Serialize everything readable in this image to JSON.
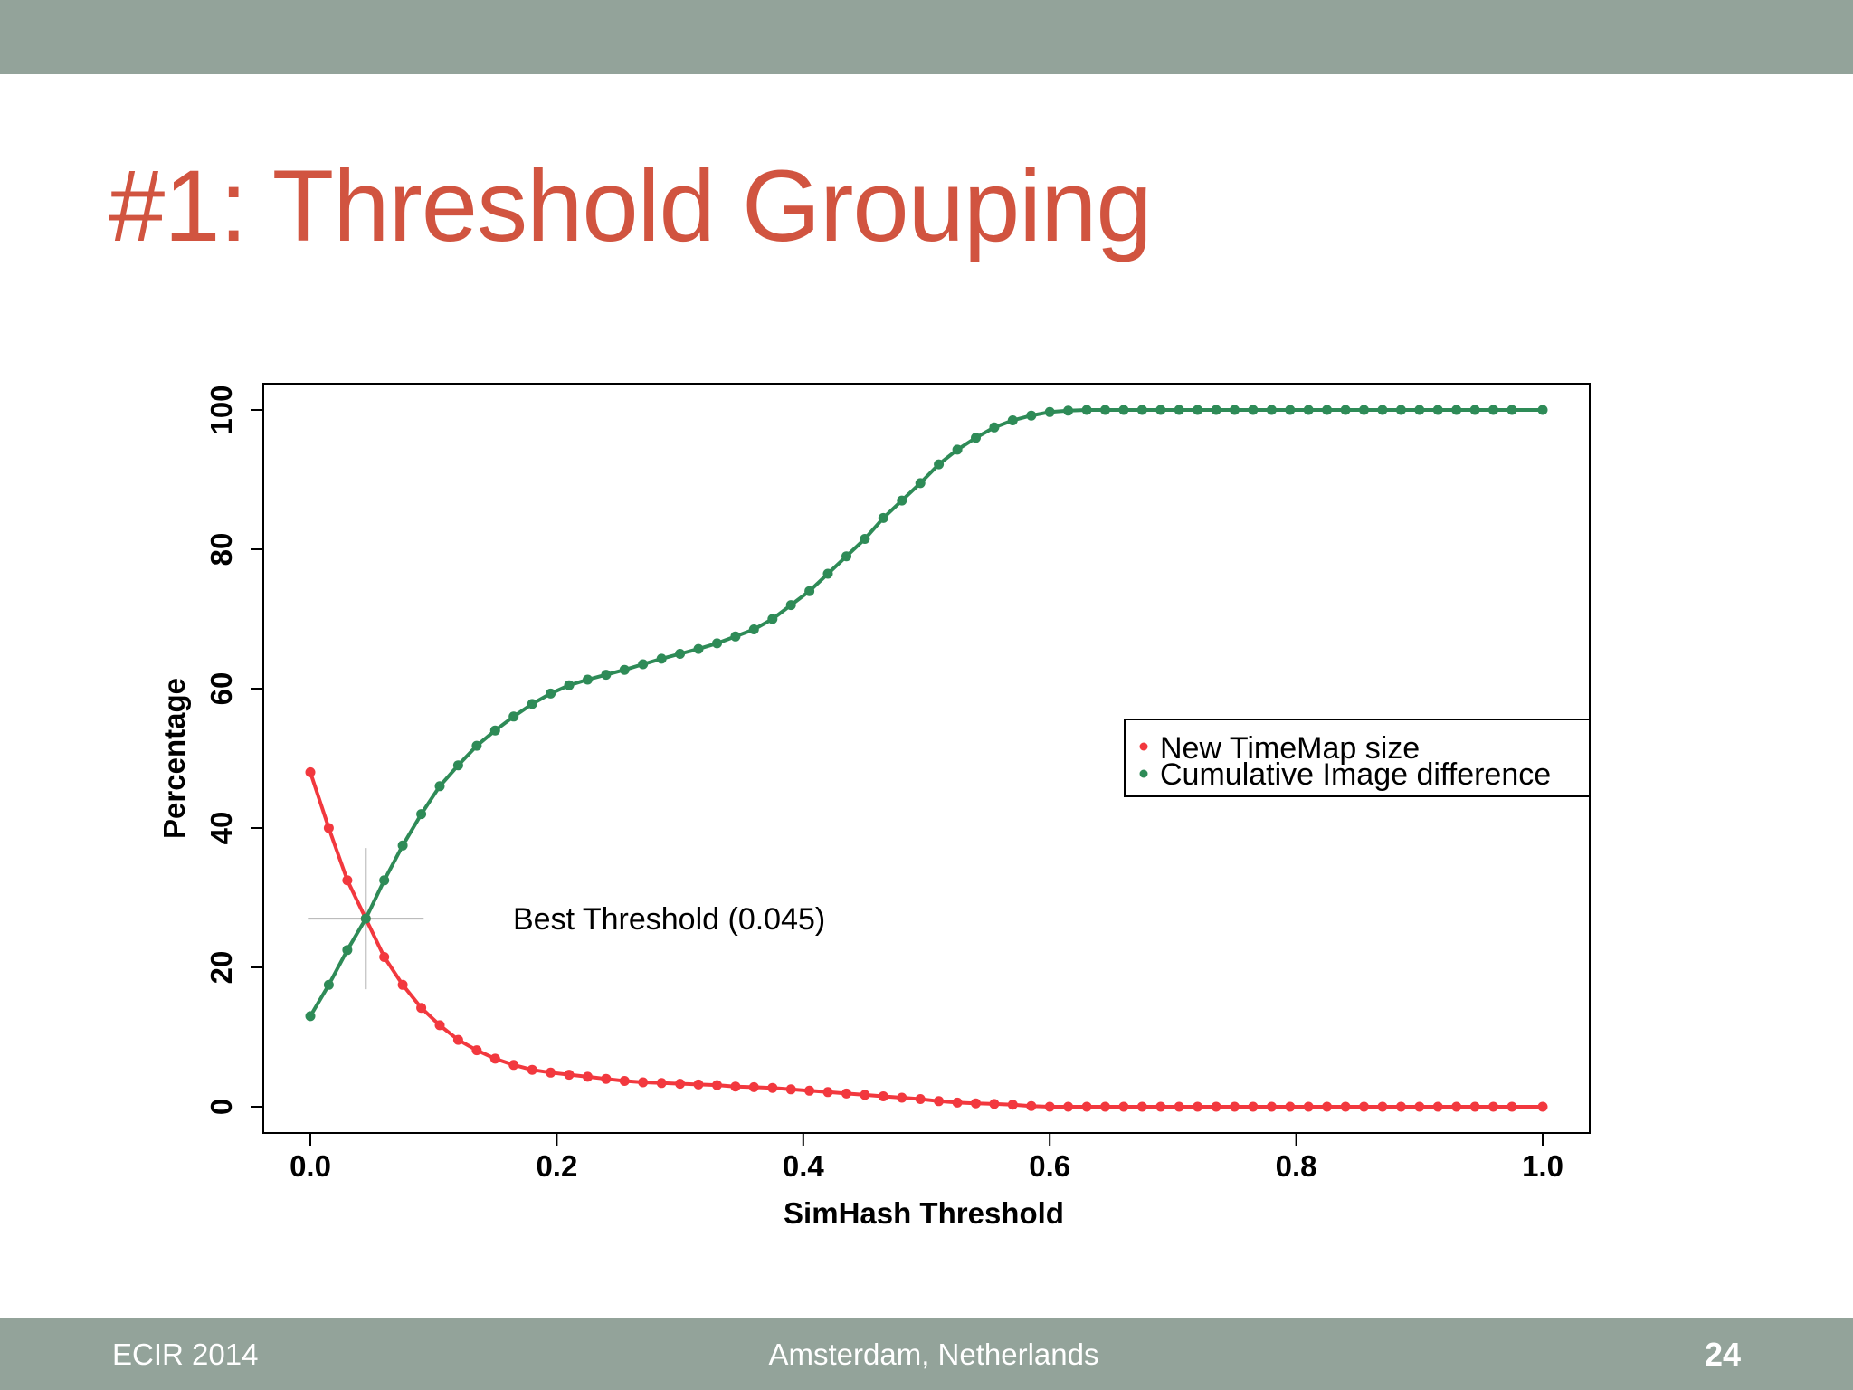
{
  "slide": {
    "title": "#1: Threshold Grouping",
    "footer_left": "ECIR 2014",
    "footer_center": "Amsterdam, Netherlands",
    "page_number": "24"
  },
  "colors": {
    "title": "#d15440",
    "bars": "#93a39a",
    "series_red": "#f2383e",
    "series_green": "#2e8b57",
    "crosshair": "#b3b3b3"
  },
  "chart_data": {
    "type": "line",
    "title": "",
    "xlabel": "SimHash Threshold",
    "ylabel": "Percentage",
    "xlim": [
      0.0,
      1.0
    ],
    "ylim": [
      0,
      100
    ],
    "x_ticks": [
      0.0,
      0.2,
      0.4,
      0.6,
      0.8,
      1.0
    ],
    "x_tick_labels": [
      "0.0",
      "0.2",
      "0.4",
      "0.6",
      "0.8",
      "1.0"
    ],
    "y_ticks": [
      0,
      20,
      40,
      60,
      80,
      100
    ],
    "y_tick_labels": [
      "0",
      "20",
      "40",
      "60",
      "80",
      "100"
    ],
    "grid": false,
    "legend": "right",
    "x": [
      0.0,
      0.015,
      0.03,
      0.045,
      0.06,
      0.075,
      0.09,
      0.105,
      0.12,
      0.135,
      0.15,
      0.165,
      0.18,
      0.195,
      0.21,
      0.225,
      0.24,
      0.255,
      0.27,
      0.285,
      0.3,
      0.315,
      0.33,
      0.345,
      0.36,
      0.375,
      0.39,
      0.405,
      0.42,
      0.435,
      0.45,
      0.465,
      0.48,
      0.495,
      0.51,
      0.525,
      0.54,
      0.555,
      0.57,
      0.585,
      0.6,
      0.615,
      0.63,
      0.645,
      0.66,
      0.675,
      0.69,
      0.705,
      0.72,
      0.735,
      0.75,
      0.765,
      0.78,
      0.795,
      0.81,
      0.825,
      0.84,
      0.855,
      0.87,
      0.885,
      0.9,
      0.915,
      0.93,
      0.945,
      0.96,
      0.975,
      1.0
    ],
    "series": [
      {
        "name": "New TimeMap size",
        "color": "#f2383e",
        "values": [
          48,
          40,
          32.5,
          27,
          21.5,
          17.5,
          14.2,
          11.7,
          9.6,
          8.1,
          6.9,
          6.0,
          5.3,
          4.9,
          4.6,
          4.3,
          4.0,
          3.7,
          3.5,
          3.4,
          3.3,
          3.2,
          3.1,
          2.9,
          2.8,
          2.7,
          2.5,
          2.3,
          2.1,
          1.9,
          1.7,
          1.5,
          1.3,
          1.1,
          0.8,
          0.6,
          0.5,
          0.4,
          0.3,
          0.1,
          0.0,
          0.0,
          0.0,
          0.0,
          0.0,
          0.0,
          0.0,
          0.0,
          0.0,
          0.0,
          0.0,
          0.0,
          0.0,
          0.0,
          0.0,
          0.0,
          0.0,
          0.0,
          0.0,
          0.0,
          0.0,
          0.0,
          0.0,
          0.0,
          0.0,
          0.0,
          0.0
        ]
      },
      {
        "name": "Cumulative Image difference",
        "color": "#2e8b57",
        "values": [
          13,
          17.5,
          22.5,
          27,
          32.5,
          37.5,
          42,
          46,
          49,
          51.8,
          54,
          56,
          57.8,
          59.3,
          60.5,
          61.3,
          62,
          62.7,
          63.5,
          64.3,
          65,
          65.7,
          66.5,
          67.5,
          68.5,
          70,
          72,
          74,
          76.5,
          79,
          81.5,
          84.5,
          87,
          89.5,
          92.2,
          94.3,
          96,
          97.5,
          98.5,
          99.2,
          99.7,
          99.9,
          100,
          100,
          100,
          100,
          100,
          100,
          100,
          100,
          100,
          100,
          100,
          100,
          100,
          100,
          100,
          100,
          100,
          100,
          100,
          100,
          100,
          100,
          100,
          100,
          100
        ]
      }
    ],
    "annotations": [
      {
        "text": "Best Threshold (0.045)",
        "x": 0.045,
        "y": 27
      }
    ]
  }
}
